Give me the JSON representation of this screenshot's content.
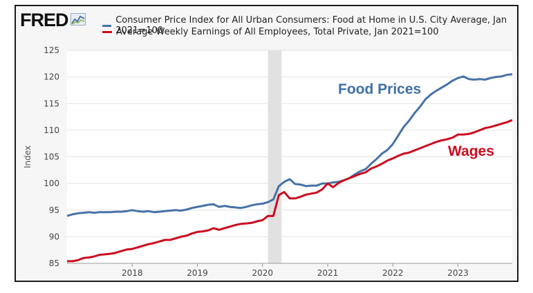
{
  "logo": {
    "text": "FRED",
    "icon": "line-chart-icon"
  },
  "chart_data": {
    "type": "line",
    "ylabel": "Index",
    "ylim": [
      85,
      125
    ],
    "yticks": [
      85,
      90,
      95,
      100,
      105,
      110,
      115,
      120,
      125
    ],
    "xticks": [
      "2018",
      "2019",
      "2020",
      "2021",
      "2022",
      "2023"
    ],
    "x_range": [
      "2017-01",
      "2023-11"
    ],
    "grid": "horizontal",
    "legend_placement": "top",
    "recession_band": [
      "2020-02",
      "2020-04"
    ],
    "x": [
      "2017-01",
      "2017-02",
      "2017-03",
      "2017-04",
      "2017-05",
      "2017-06",
      "2017-07",
      "2017-08",
      "2017-09",
      "2017-10",
      "2017-11",
      "2017-12",
      "2018-01",
      "2018-02",
      "2018-03",
      "2018-04",
      "2018-05",
      "2018-06",
      "2018-07",
      "2018-08",
      "2018-09",
      "2018-10",
      "2018-11",
      "2018-12",
      "2019-01",
      "2019-02",
      "2019-03",
      "2019-04",
      "2019-05",
      "2019-06",
      "2019-07",
      "2019-08",
      "2019-09",
      "2019-10",
      "2019-11",
      "2019-12",
      "2020-01",
      "2020-02",
      "2020-03",
      "2020-04",
      "2020-05",
      "2020-06",
      "2020-07",
      "2020-08",
      "2020-09",
      "2020-10",
      "2020-11",
      "2020-12",
      "2021-01",
      "2021-02",
      "2021-03",
      "2021-04",
      "2021-05",
      "2021-06",
      "2021-07",
      "2021-08",
      "2021-09",
      "2021-10",
      "2021-11",
      "2021-12",
      "2022-01",
      "2022-02",
      "2022-03",
      "2022-04",
      "2022-05",
      "2022-06",
      "2022-07",
      "2022-08",
      "2022-09",
      "2022-10",
      "2022-11",
      "2022-12",
      "2023-01",
      "2023-02",
      "2023-03",
      "2023-04",
      "2023-05",
      "2023-06",
      "2023-07",
      "2023-08",
      "2023-09",
      "2023-10",
      "2023-11"
    ],
    "series": [
      {
        "name": "Consumer Price Index for All Urban Consumers: Food at Home in U.S. City Average, Jan 2021=100",
        "color": "#4572a7",
        "values": [
          93.9,
          94.2,
          94.4,
          94.5,
          94.6,
          94.5,
          94.6,
          94.6,
          94.6,
          94.7,
          94.7,
          94.8,
          95.0,
          94.8,
          94.7,
          94.8,
          94.6,
          94.7,
          94.8,
          94.9,
          95.0,
          94.9,
          95.1,
          95.4,
          95.6,
          95.8,
          96.0,
          96.1,
          95.6,
          95.8,
          95.6,
          95.5,
          95.4,
          95.6,
          95.9,
          96.1,
          96.2,
          96.5,
          97.0,
          99.5,
          100.3,
          100.8,
          99.9,
          99.8,
          99.5,
          99.6,
          99.6,
          100.0,
          100.0,
          100.2,
          100.3,
          100.6,
          101.0,
          101.7,
          102.3,
          102.7,
          103.7,
          104.6,
          105.6,
          106.3,
          107.4,
          109.0,
          110.6,
          111.8,
          113.2,
          114.4,
          115.8,
          116.7,
          117.4,
          118.0,
          118.6,
          119.3,
          119.8,
          120.1,
          119.6,
          119.5,
          119.6,
          119.5,
          119.8,
          120.0,
          120.1,
          120.4,
          120.5
        ]
      },
      {
        "name": "Average Weekly Earnings of All Employees, Total Private, Jan 2021=100",
        "color": "#cc0a1e",
        "values": [
          85.4,
          85.4,
          85.6,
          86.0,
          86.1,
          86.3,
          86.6,
          86.7,
          86.8,
          87.0,
          87.3,
          87.6,
          87.7,
          88.0,
          88.3,
          88.6,
          88.8,
          89.1,
          89.4,
          89.4,
          89.7,
          90.0,
          90.2,
          90.6,
          90.9,
          91.0,
          91.2,
          91.6,
          91.3,
          91.6,
          91.9,
          92.2,
          92.4,
          92.5,
          92.6,
          92.9,
          93.1,
          93.9,
          93.9,
          97.8,
          98.4,
          97.2,
          97.2,
          97.5,
          97.9,
          98.1,
          98.3,
          98.9,
          100.0,
          99.3,
          100.1,
          100.6,
          101.0,
          101.4,
          101.8,
          102.1,
          102.8,
          103.2,
          103.7,
          104.3,
          104.7,
          105.2,
          105.6,
          105.8,
          106.2,
          106.6,
          107.0,
          107.4,
          107.8,
          108.1,
          108.3,
          108.6,
          109.2,
          109.2,
          109.3,
          109.6,
          110.0,
          110.4,
          110.6,
          110.9,
          111.2,
          111.5,
          111.9
        ]
      }
    ],
    "annotations": [
      {
        "text": "Food Prices",
        "series": 0,
        "color": "#3f6fa6"
      },
      {
        "text": "Wages",
        "series": 1,
        "color": "#cc0a1e"
      }
    ]
  }
}
